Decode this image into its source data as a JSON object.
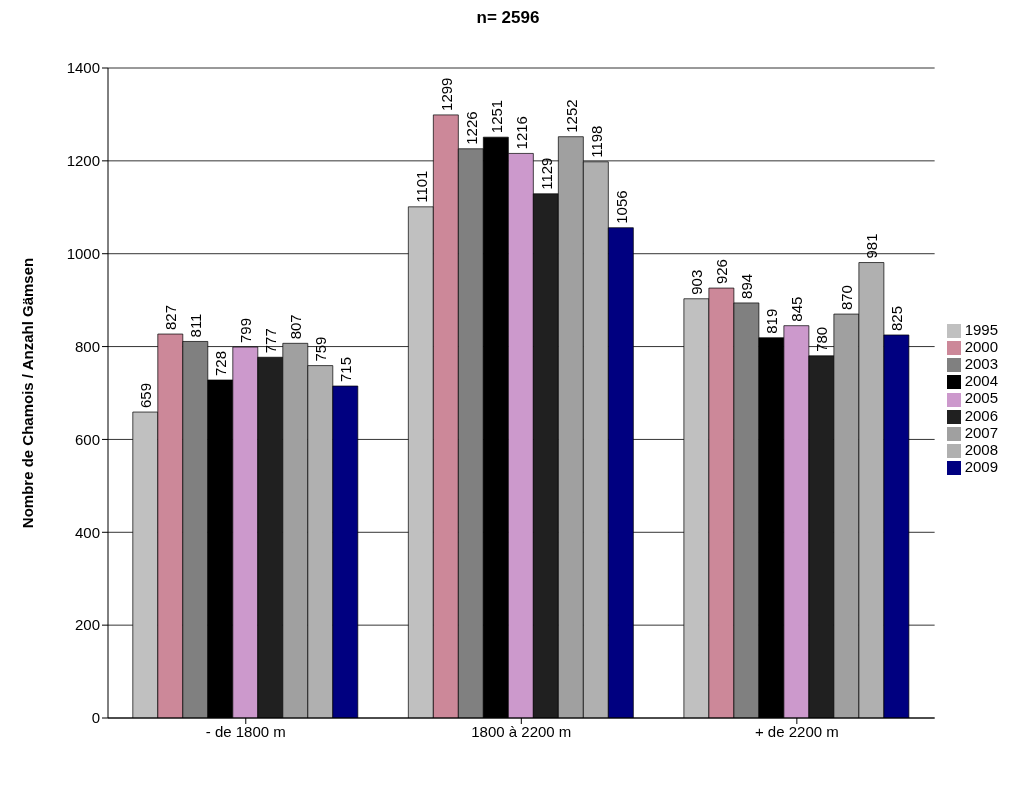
{
  "chart_data": {
    "type": "bar",
    "title": "n= 2596",
    "ylabel": "Nombre de Chamois / Anzahl Gämsen",
    "categories": [
      "- de 1800 m",
      "1800 à 2200 m",
      "+ de 2200 m"
    ],
    "series": [
      {
        "name": "1995",
        "color": "#c0c0c0",
        "values": [
          659,
          1101,
          903
        ]
      },
      {
        "name": "2000",
        "color": "#cc8899",
        "values": [
          827,
          1299,
          926
        ]
      },
      {
        "name": "2003",
        "color": "#808080",
        "values": [
          811,
          1226,
          894
        ]
      },
      {
        "name": "2004",
        "color": "#000000",
        "values": [
          728,
          1251,
          819
        ]
      },
      {
        "name": "2005",
        "color": "#cc99cc",
        "values": [
          799,
          1216,
          845
        ]
      },
      {
        "name": "2006",
        "color": "#202020",
        "values": [
          777,
          1129,
          780
        ]
      },
      {
        "name": "2007",
        "color": "#a0a0a0",
        "values": [
          807,
          1252,
          870
        ]
      },
      {
        "name": "2008",
        "color": "#b0b0b0",
        "values": [
          759,
          1198,
          981
        ]
      },
      {
        "name": "2009",
        "color": "#000080",
        "values": [
          715,
          1056,
          825
        ]
      }
    ],
    "ylim": [
      0,
      1400
    ],
    "yticks": [
      0,
      200,
      400,
      600,
      800,
      1000,
      1200,
      1400
    ],
    "grid": "y",
    "legend": "right",
    "data_labels": true
  }
}
